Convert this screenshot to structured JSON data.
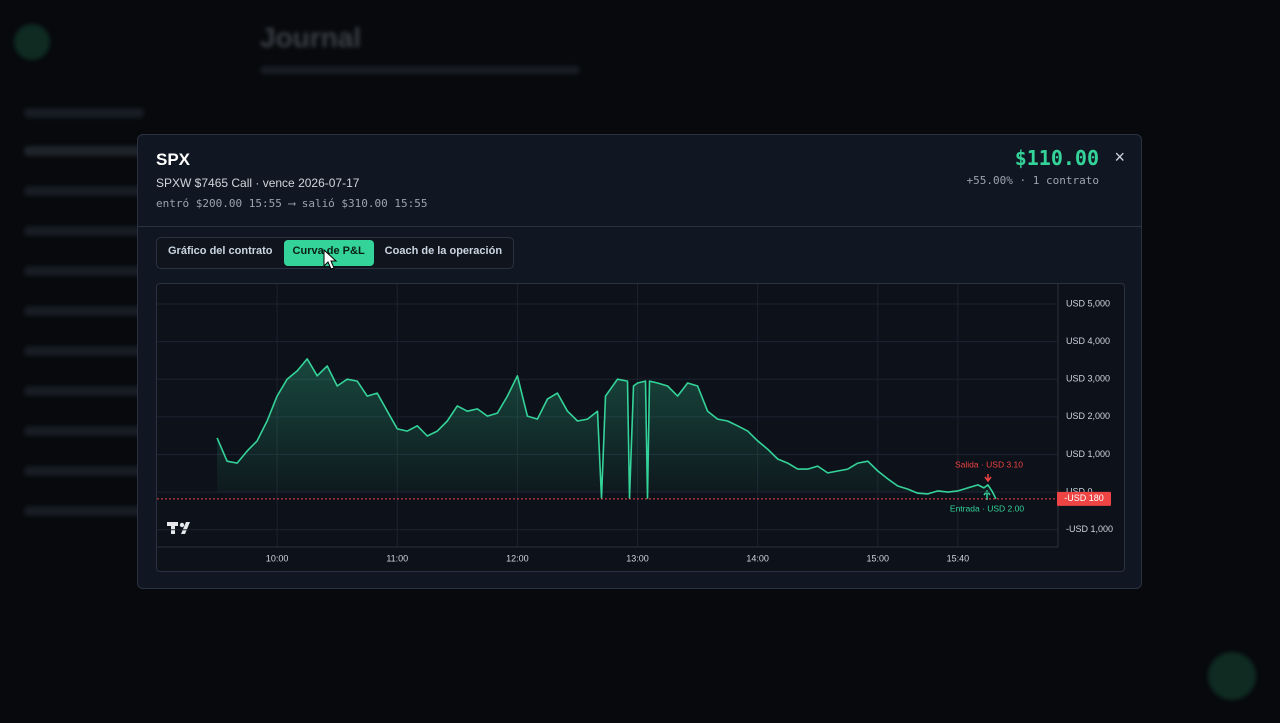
{
  "background": {
    "page_title": "Journal"
  },
  "header": {
    "symbol": "SPX",
    "contract": "SPXW $7465 Call · vence 2026-07-17",
    "trade": "entró $200.00 15:55 ⟶ salió $310.00 15:55",
    "pnl": "$110.00",
    "pnl_detail": "+55.00% · 1 contrato",
    "close": "×"
  },
  "tabs": [
    {
      "label": "Gráfico del contrato",
      "active": false
    },
    {
      "label": "Curva de P&L",
      "active": true
    },
    {
      "label": "Coach de la operación",
      "active": false
    }
  ],
  "chart_data": {
    "type": "line",
    "x": [
      "09:30",
      "09:35",
      "09:40",
      "09:45",
      "09:50",
      "09:55",
      "10:00",
      "10:05",
      "10:10",
      "10:15",
      "10:20",
      "10:25",
      "10:30",
      "10:35",
      "10:40",
      "10:45",
      "10:50",
      "10:55",
      "11:00",
      "11:05",
      "11:10",
      "11:15",
      "11:20",
      "11:25",
      "11:30",
      "11:35",
      "11:40",
      "11:45",
      "11:50",
      "11:55",
      "12:00",
      "12:05",
      "12:10",
      "12:15",
      "12:20",
      "12:25",
      "12:30",
      "12:35",
      "12:40",
      "12:42",
      "12:44",
      "12:50",
      "12:55",
      "12:56",
      "12:58",
      "13:00",
      "13:04",
      "13:05",
      "13:06",
      "13:10",
      "13:15",
      "13:20",
      "13:25",
      "13:30",
      "13:35",
      "13:40",
      "13:45",
      "13:50",
      "13:55",
      "14:00",
      "14:05",
      "14:10",
      "14:15",
      "14:20",
      "14:25",
      "14:30",
      "14:35",
      "14:40",
      "14:45",
      "14:50",
      "14:55",
      "15:00",
      "15:05",
      "15:10",
      "15:15",
      "15:20",
      "15:25",
      "15:30",
      "15:35",
      "15:40",
      "15:45",
      "15:50",
      "15:53",
      "15:55",
      "15:57",
      "15:59"
    ],
    "series": [
      {
        "name": "P&L",
        "color": "#34d399",
        "values": [
          1440,
          820,
          770,
          1090,
          1360,
          1890,
          2550,
          3000,
          3220,
          3540,
          3090,
          3350,
          2820,
          3000,
          2950,
          2550,
          2630,
          2150,
          1680,
          1620,
          1760,
          1490,
          1620,
          1890,
          2290,
          2150,
          2210,
          2020,
          2100,
          2550,
          3090,
          2020,
          1940,
          2470,
          2630,
          2150,
          1890,
          1940,
          2150,
          -160,
          2550,
          3000,
          2950,
          -160,
          2820,
          2900,
          2950,
          -160,
          2950,
          2900,
          2820,
          2550,
          2900,
          2820,
          2150,
          1940,
          1890,
          1760,
          1620,
          1360,
          1140,
          880,
          770,
          610,
          610,
          690,
          510,
          560,
          610,
          770,
          820,
          560,
          350,
          160,
          80,
          -30,
          -50,
          30,
          0,
          30,
          110,
          190,
          110,
          190,
          30,
          -180
        ]
      }
    ],
    "xlim": [
      "09:00",
      "16:30"
    ],
    "xticks": [
      "10:00",
      "11:00",
      "12:00",
      "13:00",
      "14:00",
      "15:00",
      "15:40"
    ],
    "ylim": [
      -1460,
      5530
    ],
    "yticks": [
      {
        "value": 5000,
        "label": "USD 5,000"
      },
      {
        "value": 4000,
        "label": "USD 4,000"
      },
      {
        "value": 3000,
        "label": "USD 3,000"
      },
      {
        "value": 2000,
        "label": "USD 2,000"
      },
      {
        "value": 1000,
        "label": "USD 1,000"
      },
      {
        "value": 0,
        "label": "USD 0"
      },
      {
        "value": -1000,
        "label": "-USD 1,000"
      }
    ],
    "grid": true,
    "reference_line": {
      "value": -180,
      "label": "-USD 180",
      "color": "#ef4444"
    },
    "annotations": [
      {
        "text": "Salida · USD 3.10",
        "color": "#ef4444"
      },
      {
        "text": "Entrada · USD 2.00",
        "color": "#34d399"
      }
    ]
  }
}
